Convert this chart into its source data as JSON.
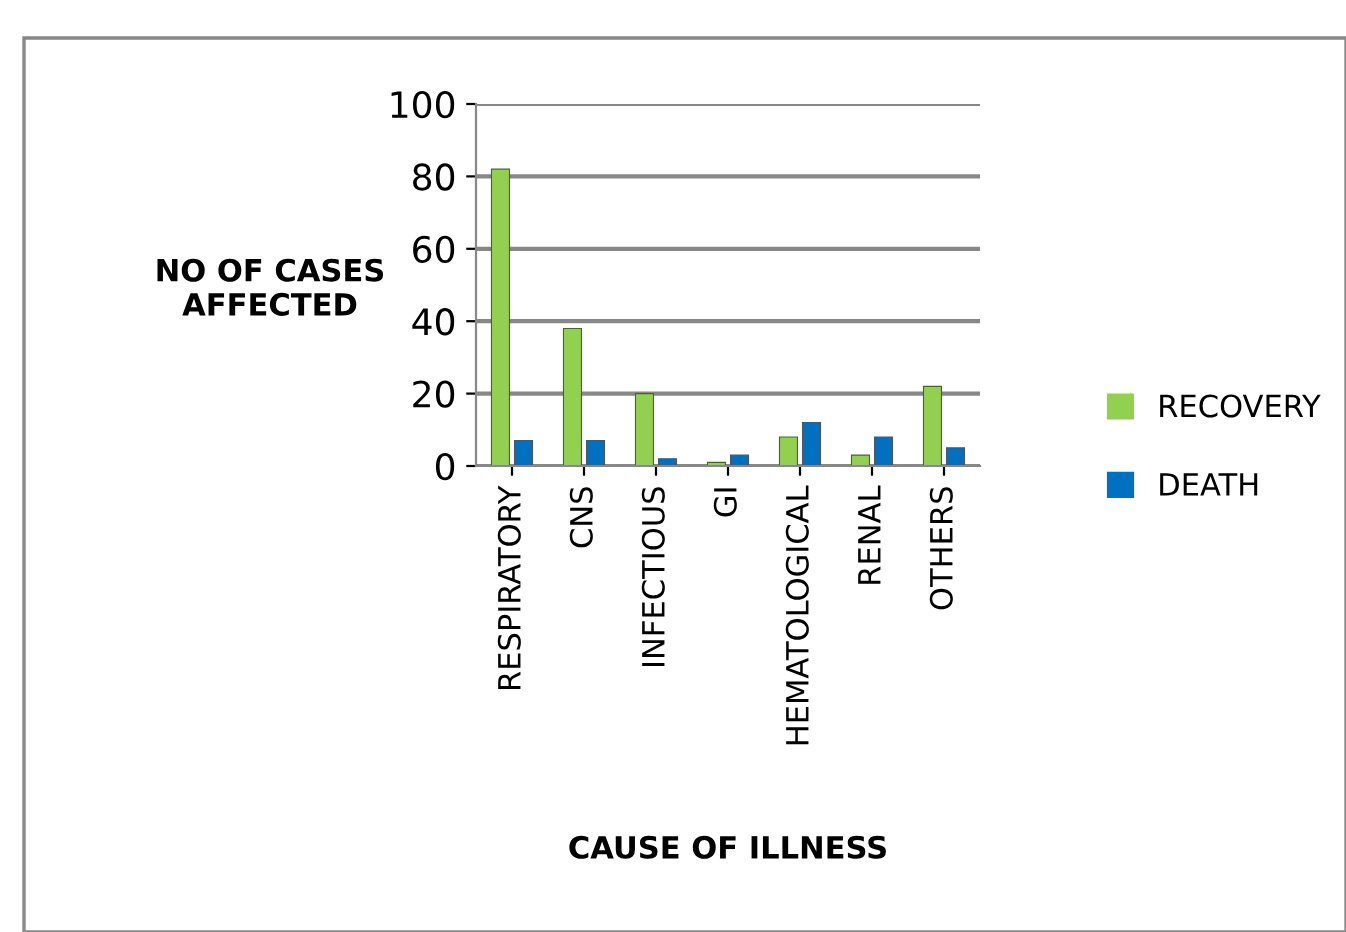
{
  "chart_data": {
    "type": "bar",
    "xlabel": "CAUSE OF ILLNESS",
    "ylabel": "NO OF CASES\nAFFECTED",
    "categories": [
      "RESPIRATORY",
      "CNS",
      "INFECTIOUS",
      "GI",
      "HEMATOLOGICAL",
      "RENAL",
      "OTHERS"
    ],
    "series": [
      {
        "name": "RECOVERY",
        "color": "#92d050",
        "values": [
          82,
          38,
          20,
          1,
          8,
          3,
          22
        ]
      },
      {
        "name": "DEATH",
        "color": "#0070c0",
        "values": [
          7,
          7,
          2,
          3,
          12,
          8,
          5
        ]
      }
    ],
    "ylim": [
      0,
      100
    ],
    "yticks": [
      0,
      20,
      40,
      60,
      80,
      100
    ],
    "grid": "y",
    "legend": "right"
  }
}
